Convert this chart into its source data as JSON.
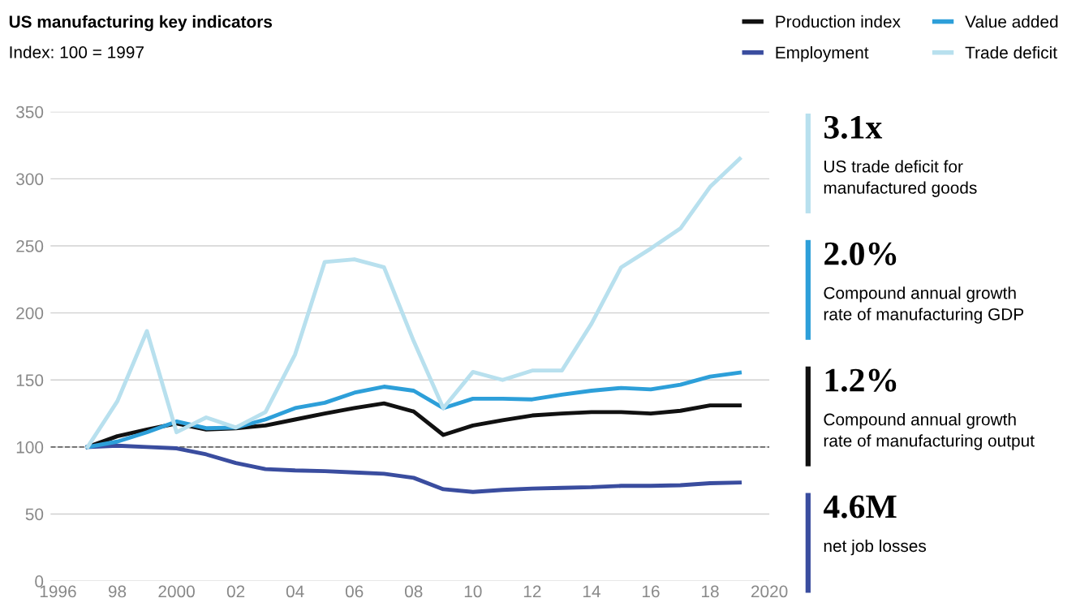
{
  "chart_data": {
    "type": "line",
    "title": "US manufacturing key indicators",
    "subtitle": "Index: 100 = 1997",
    "x": [
      1997,
      1998,
      1999,
      2000,
      2001,
      2002,
      2003,
      2004,
      2005,
      2006,
      2007,
      2008,
      2009,
      2010,
      2011,
      2012,
      2013,
      2014,
      2015,
      2016,
      2017,
      2018,
      2019
    ],
    "series": [
      {
        "name": "Production index",
        "color": "#111111",
        "values": [
          100,
          108,
          113,
          117.5,
          113,
          114,
          116,
          120.5,
          125,
          129,
          132.5,
          126.5,
          109,
          116,
          120,
          123.5,
          125,
          126,
          126,
          125,
          127,
          131,
          131
        ]
      },
      {
        "name": "Employment",
        "color": "#3a4d9f",
        "values": [
          100,
          101,
          100,
          99,
          94.5,
          88,
          83.5,
          82.5,
          82,
          81,
          80,
          77,
          68.5,
          66.5,
          68,
          69,
          69.5,
          70,
          71,
          71,
          71.5,
          73,
          73.5
        ]
      },
      {
        "name": "Value added",
        "color": "#2d9fd9",
        "values": [
          100,
          104,
          111,
          119,
          114,
          114.5,
          120.5,
          129,
          133,
          140.5,
          145,
          142,
          129,
          136,
          136,
          135.5,
          139,
          142,
          144,
          143,
          146.5,
          152.5,
          155.5
        ]
      },
      {
        "name": "Trade deficit",
        "color": "#b8e0ee",
        "values": [
          100,
          134,
          186.5,
          111,
          122,
          114.5,
          126,
          169,
          238,
          240,
          234,
          179,
          129,
          156,
          150,
          157,
          157,
          192,
          234,
          248,
          263,
          294,
          315
        ]
      }
    ],
    "xlim": [
      1995.75,
      2020
    ],
    "xticks": [
      {
        "value": 1996,
        "label": "1996"
      },
      {
        "value": 1998,
        "label": "98"
      },
      {
        "value": 2000,
        "label": "2000"
      },
      {
        "value": 2002,
        "label": "02"
      },
      {
        "value": 2004,
        "label": "04"
      },
      {
        "value": 2006,
        "label": "06"
      },
      {
        "value": 2008,
        "label": "08"
      },
      {
        "value": 2010,
        "label": "10"
      },
      {
        "value": 2012,
        "label": "12"
      },
      {
        "value": 2014,
        "label": "14"
      },
      {
        "value": 2016,
        "label": "16"
      },
      {
        "value": 2018,
        "label": "18"
      },
      {
        "value": 2020,
        "label": "2020"
      }
    ],
    "ylim": [
      0,
      350
    ],
    "yticks": [
      0,
      50,
      100,
      150,
      200,
      250,
      300,
      350
    ],
    "grid": "y",
    "legend": "top right",
    "marker": "none",
    "line_style": "solid",
    "ref_lines": [
      {
        "axis": "y",
        "value": 100,
        "label": null,
        "color": "#666666",
        "line_style": "dashed"
      }
    ],
    "annotations": [
      "3.1x",
      "US trade deficit for\nmanufactured goods",
      "2.0%",
      "Compound annual growth\nrate of manufacturing GDP",
      "1.2%",
      "Compound annual growth\nrate of manufacturing output",
      "4.6M",
      "net job losses"
    ]
  }
}
